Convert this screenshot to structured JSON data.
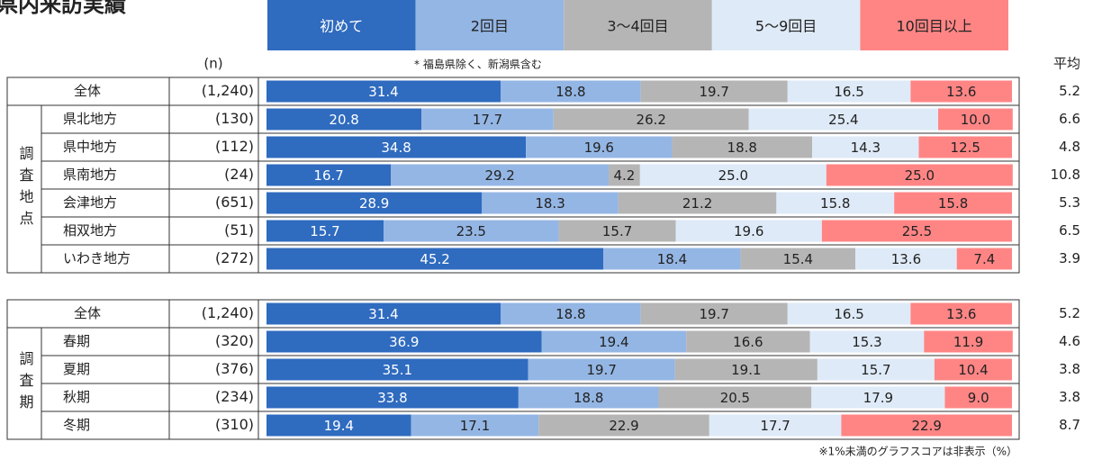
{
  "chart_data": {
    "type": "bar",
    "title": "県内来訪実績",
    "n_label": "(n)",
    "note": "* 福島県除く、新潟県含む",
    "avg_label": "平均",
    "footnote": "※1%未満のグラフスコアは非表示（%）",
    "xlim": [
      0,
      100
    ],
    "legend": [
      {
        "name": "初めて",
        "color": "#2f6bbf"
      },
      {
        "name": "2回目",
        "color": "#94b6e4"
      },
      {
        "name": "3～4回目",
        "color": "#b5b5b5"
      },
      {
        "name": "5～9回目",
        "color": "#deeaf7"
      },
      {
        "name": "10回目以上",
        "color": "#ff8585"
      }
    ],
    "panels": [
      {
        "group_label": "調査地点",
        "categories": [
          "全体",
          "県北地方",
          "県中地方",
          "県南地方",
          "会津地方",
          "相双地方",
          "いわき地方"
        ],
        "n": [
          "(1,240)",
          "(130)",
          "(112)",
          "(24)",
          "(651)",
          "(51)",
          "(272)"
        ],
        "averages": [
          5.2,
          6.6,
          4.8,
          10.8,
          5.3,
          6.5,
          3.9
        ],
        "series": [
          {
            "values": [
              31.4,
              20.8,
              34.8,
              16.7,
              28.9,
              15.7,
              45.2
            ],
            "value_labels": [
              "31.4",
              "20.8",
              "34.8",
              "16.7",
              "28.9",
              "15.7",
              "45.2"
            ]
          },
          {
            "values": [
              18.8,
              17.7,
              19.6,
              29.2,
              18.3,
              23.5,
              18.4
            ],
            "value_labels": [
              "18.8",
              "17.7",
              "19.6",
              "29.2",
              "18.3",
              "23.5",
              "18.4"
            ]
          },
          {
            "values": [
              19.7,
              26.2,
              18.8,
              4.2,
              21.2,
              15.7,
              15.4
            ],
            "value_labels": [
              "19.7",
              "26.2",
              "18.8",
              "4.2",
              "21.2",
              "15.7",
              "15.4"
            ]
          },
          {
            "values": [
              16.5,
              25.4,
              14.3,
              25.0,
              15.8,
              19.6,
              13.6
            ],
            "value_labels": [
              "16.5",
              "25.4",
              "14.3",
              "25.0",
              "15.8",
              "19.6",
              "13.6"
            ]
          },
          {
            "values": [
              13.6,
              10.0,
              12.5,
              25.0,
              15.8,
              25.5,
              7.4
            ],
            "value_labels": [
              "13.6",
              "10.0",
              "12.5",
              "25.0",
              "15.8",
              "25.5",
              "7.4"
            ]
          }
        ]
      },
      {
        "group_label": "調査期",
        "categories": [
          "全体",
          "春期",
          "夏期",
          "秋期",
          "冬期"
        ],
        "n": [
          "(1,240)",
          "(320)",
          "(376)",
          "(234)",
          "(310)"
        ],
        "averages": [
          5.2,
          4.6,
          3.8,
          3.8,
          8.7
        ],
        "series": [
          {
            "values": [
              31.4,
              36.9,
              35.1,
              33.8,
              19.4
            ],
            "value_labels": [
              "31.4",
              "36.9",
              "35.1",
              "33.8",
              "19.4"
            ]
          },
          {
            "values": [
              18.8,
              19.4,
              19.7,
              18.8,
              17.1
            ],
            "value_labels": [
              "18.8",
              "19.4",
              "19.7",
              "18.8",
              "17.1"
            ]
          },
          {
            "values": [
              19.7,
              16.6,
              19.1,
              20.5,
              22.9
            ],
            "value_labels": [
              "19.7",
              "16.6",
              "19.1",
              "20.5",
              "22.9"
            ]
          },
          {
            "values": [
              16.5,
              15.3,
              15.7,
              17.9,
              17.7
            ],
            "value_labels": [
              "16.5",
              "15.3",
              "15.7",
              "17.9",
              "17.7"
            ]
          },
          {
            "values": [
              13.6,
              11.9,
              10.4,
              9.0,
              22.9
            ],
            "value_labels": [
              "13.6",
              "11.9",
              "10.4",
              "9.0",
              "22.9"
            ]
          }
        ]
      }
    ]
  }
}
